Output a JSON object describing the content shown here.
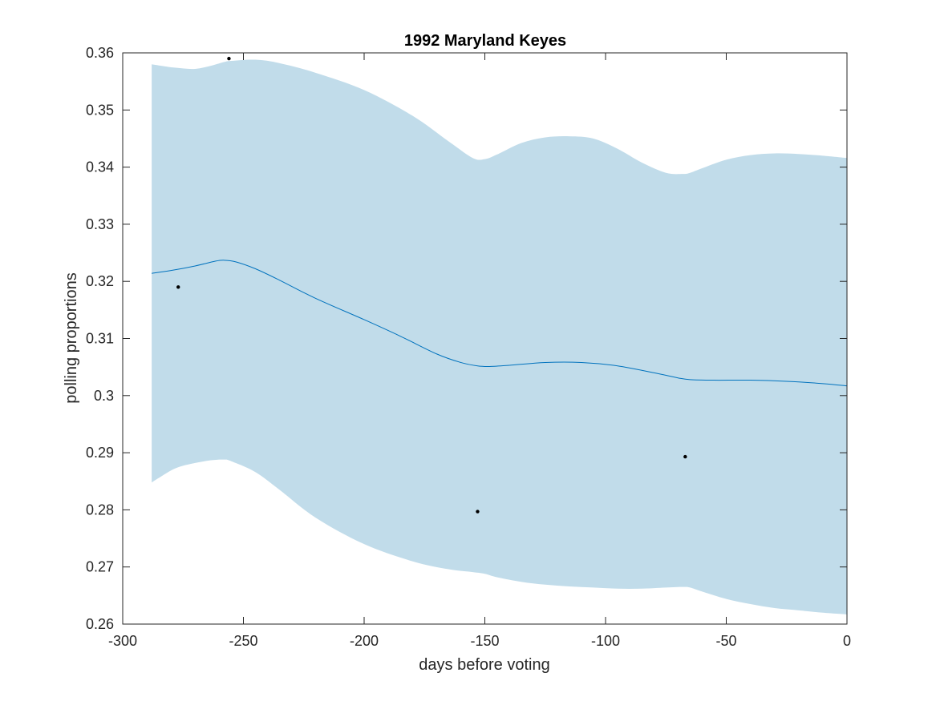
{
  "chart_data": {
    "type": "line",
    "title": "1992 Maryland Keyes",
    "xlabel": "days before voting",
    "ylabel": "polling proportions",
    "xlim": [
      -300,
      0
    ],
    "ylim": [
      0.26,
      0.36
    ],
    "xticks": [
      -300,
      -250,
      -200,
      -150,
      -100,
      -50,
      0
    ],
    "xtick_labels": [
      "-300",
      "-250",
      "-200",
      "-150",
      "-100",
      "-50",
      "0"
    ],
    "yticks": [
      0.26,
      0.27,
      0.28,
      0.29,
      0.3,
      0.31,
      0.32,
      0.33,
      0.34,
      0.35,
      0.36
    ],
    "ytick_labels": [
      "0.26",
      "0.27",
      "0.28",
      "0.29",
      "0.3",
      "0.31",
      "0.32",
      "0.33",
      "0.34",
      "0.35",
      "0.36"
    ],
    "grid": false,
    "colors": {
      "band": "#c1dcea",
      "line": "#0072bd",
      "points": "#000000",
      "axes": "#262626"
    },
    "series": [
      {
        "kind": "band",
        "x": [
          -288,
          -285,
          -278,
          -270,
          -263,
          -258,
          -255,
          -245,
          -235,
          -220,
          -200,
          -180,
          -165,
          -155,
          -150,
          -145,
          -135,
          -125,
          -115,
          -105,
          -95,
          -85,
          -75,
          -68,
          -65,
          -60,
          -50,
          -40,
          -30,
          -20,
          -10,
          0
        ],
        "upper": [
          0.358,
          0.3578,
          0.3574,
          0.3572,
          0.3578,
          0.3584,
          0.3586,
          0.3588,
          0.3582,
          0.3565,
          0.3535,
          0.349,
          0.3445,
          0.3416,
          0.3414,
          0.3422,
          0.3442,
          0.3452,
          0.3454,
          0.345,
          0.3432,
          0.3408,
          0.339,
          0.3388,
          0.339,
          0.3398,
          0.3413,
          0.3421,
          0.3424,
          0.3423,
          0.342,
          0.3416
        ],
        "lower": [
          0.2848,
          0.2856,
          0.2873,
          0.2882,
          0.2887,
          0.2888,
          0.2885,
          0.2866,
          0.2835,
          0.2786,
          0.274,
          0.271,
          0.2696,
          0.2691,
          0.2688,
          0.2682,
          0.2674,
          0.2669,
          0.2666,
          0.2664,
          0.2662,
          0.2662,
          0.2664,
          0.2665,
          0.2664,
          0.2657,
          0.2644,
          0.2635,
          0.2628,
          0.2624,
          0.262,
          0.2617
        ]
      },
      {
        "kind": "line",
        "x": [
          -288,
          -280,
          -270,
          -262,
          -258,
          -253,
          -245,
          -235,
          -220,
          -200,
          -185,
          -170,
          -160,
          -153,
          -148,
          -140,
          -125,
          -110,
          -95,
          -80,
          -70,
          -65,
          -55,
          -40,
          -25,
          -10,
          0
        ],
        "y": [
          0.3214,
          0.3219,
          0.3227,
          0.3235,
          0.3237,
          0.3234,
          0.3222,
          0.3202,
          0.317,
          0.3133,
          0.3104,
          0.3073,
          0.3058,
          0.3052,
          0.3051,
          0.3053,
          0.3058,
          0.3058,
          0.3052,
          0.304,
          0.3031,
          0.3028,
          0.3027,
          0.3027,
          0.3025,
          0.3021,
          0.3017
        ]
      },
      {
        "kind": "scatter",
        "x": [
          -277,
          -256,
          -153,
          -67
        ],
        "y": [
          0.319,
          0.359,
          0.2797,
          0.2893
        ]
      }
    ]
  }
}
